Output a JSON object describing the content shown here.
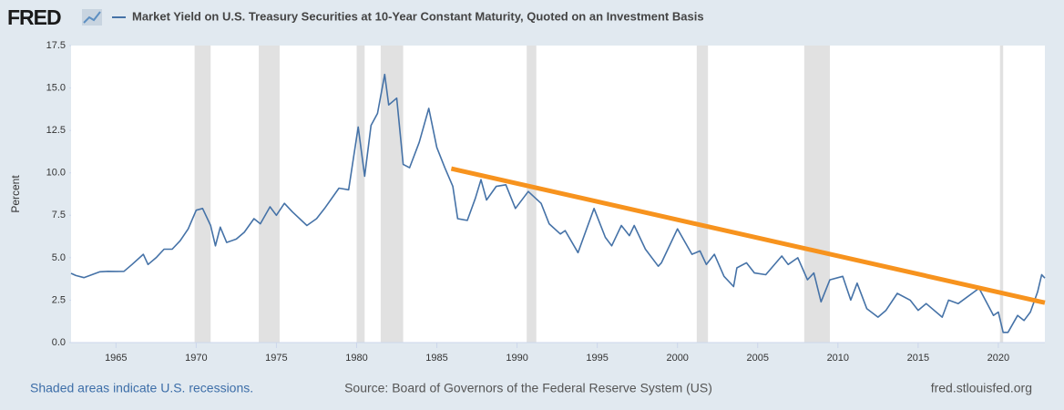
{
  "chart_data": {
    "type": "line",
    "logo": "FRED",
    "title": "Market Yield on U.S. Treasury Securities at 10-Year Constant Maturity, Quoted on an Investment Basis",
    "y_label": "Percent",
    "footnote": "Shaded areas indicate U.S. recessions.",
    "source": "Source: Board of Governors of the Federal Reserve System (US)",
    "site": "fred.stlouisfed.org",
    "x": [
      1962.2,
      1962.5,
      1963.0,
      1963.5,
      1964.0,
      1964.5,
      1965.0,
      1965.5,
      1966.0,
      1966.7,
      1967.0,
      1967.5,
      1968.0,
      1968.5,
      1969.0,
      1969.5,
      1970.0,
      1970.4,
      1970.9,
      1971.2,
      1971.5,
      1971.9,
      1972.5,
      1973.0,
      1973.6,
      1974.0,
      1974.6,
      1975.0,
      1975.5,
      1976.0,
      1976.9,
      1977.5,
      1978.0,
      1978.9,
      1979.5,
      1980.1,
      1980.5,
      1980.9,
      1981.3,
      1981.75,
      1982.0,
      1982.5,
      1982.9,
      1983.3,
      1983.9,
      1984.5,
      1985.0,
      1985.5,
      1986.0,
      1986.3,
      1986.9,
      1987.4,
      1987.75,
      1988.1,
      1988.7,
      1989.3,
      1989.9,
      1990.7,
      1991.5,
      1992.0,
      1992.7,
      1993.0,
      1993.8,
      1994.8,
      1995.5,
      1995.9,
      1996.5,
      1997.0,
      1997.3,
      1998.0,
      1998.8,
      1999.0,
      2000.0,
      2000.9,
      2001.4,
      2001.8,
      2002.3,
      2002.9,
      2003.5,
      2003.7,
      2004.3,
      2004.8,
      2005.5,
      2006.5,
      2006.9,
      2007.5,
      2008.1,
      2008.5,
      2008.95,
      2009.5,
      2010.3,
      2010.8,
      2011.2,
      2011.8,
      2012.5,
      2013.0,
      2013.7,
      2014.5,
      2015.0,
      2015.5,
      2016.5,
      2016.9,
      2017.5,
      2018.8,
      2019.7,
      2020.0,
      2020.3,
      2020.6,
      2021.2,
      2021.6,
      2022.0,
      2022.45,
      2022.7,
      2022.9
    ],
    "series": [
      {
        "name": "Market Yield on U.S. Treasury Securities at 10-Year Constant Maturity, Quoted on an Investment Basis",
        "color": "#4572a7",
        "values": [
          4.08,
          3.95,
          3.83,
          4.0,
          4.17,
          4.2,
          4.19,
          4.2,
          4.6,
          5.2,
          4.6,
          5.0,
          5.5,
          5.5,
          6.0,
          6.7,
          7.8,
          7.9,
          6.9,
          5.7,
          6.8,
          5.9,
          6.1,
          6.5,
          7.3,
          7.0,
          8.0,
          7.5,
          8.2,
          7.7,
          6.9,
          7.3,
          7.9,
          9.1,
          9.0,
          12.7,
          9.8,
          12.8,
          13.5,
          15.8,
          14.0,
          14.4,
          10.5,
          10.3,
          11.8,
          13.8,
          11.5,
          10.3,
          9.2,
          7.3,
          7.2,
          8.5,
          9.6,
          8.4,
          9.2,
          9.3,
          7.9,
          8.9,
          8.2,
          7.0,
          6.4,
          6.6,
          5.3,
          7.9,
          6.2,
          5.7,
          6.9,
          6.3,
          6.9,
          5.5,
          4.5,
          4.7,
          6.7,
          5.2,
          5.4,
          4.6,
          5.2,
          3.9,
          3.3,
          4.4,
          4.7,
          4.1,
          4.0,
          5.1,
          4.6,
          5.0,
          3.7,
          4.1,
          2.4,
          3.7,
          3.9,
          2.5,
          3.5,
          2.0,
          1.5,
          1.9,
          2.9,
          2.5,
          1.9,
          2.3,
          1.5,
          2.5,
          2.3,
          3.2,
          1.6,
          1.8,
          0.6,
          0.6,
          1.6,
          1.3,
          1.8,
          3.0,
          4.0,
          3.8
        ]
      }
    ],
    "trend_line": {
      "x": [
        1985.9,
        2022.9
      ],
      "values": [
        10.25,
        2.35
      ],
      "color": "#f7931e"
    },
    "recessions": [
      [
        1969.9,
        1970.9
      ],
      [
        1973.9,
        1975.2
      ],
      [
        1980.0,
        1980.5
      ],
      [
        1981.5,
        1982.9
      ],
      [
        1990.6,
        1991.2
      ],
      [
        2001.2,
        2001.9
      ],
      [
        2007.9,
        2009.5
      ],
      [
        2020.1,
        2020.3
      ]
    ],
    "recession_color": "#e1e1e1",
    "xlim": [
      1962.2,
      2022.9
    ],
    "ylim": [
      0,
      17.5
    ],
    "xticks": [
      1965,
      1970,
      1975,
      1980,
      1985,
      1990,
      1995,
      2000,
      2005,
      2010,
      2015,
      2020
    ],
    "yticks": [
      {
        "value": 0,
        "label": "0.0"
      },
      2.5,
      {
        "value": 5,
        "label": "5.0"
      },
      7.5,
      {
        "value": 10,
        "label": "10.0"
      },
      12.5,
      {
        "value": 15,
        "label": "15.0"
      },
      17.5
    ],
    "grid": false
  }
}
